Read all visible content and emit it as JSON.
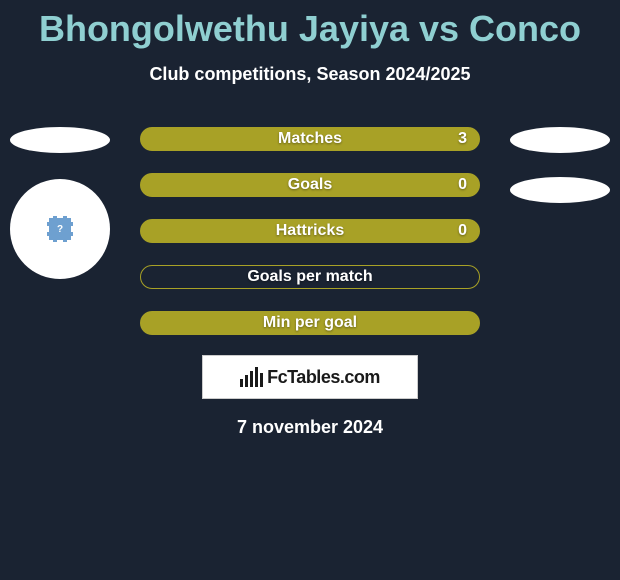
{
  "title": "Bhongolwethu Jayiya vs Conco",
  "subtitle": "Club competitions, Season 2024/2025",
  "stats": [
    {
      "label": "Matches",
      "value": "3",
      "bg": "#a8a126",
      "border": "#a8a126"
    },
    {
      "label": "Goals",
      "value": "0",
      "bg": "#a8a126",
      "border": "#a8a126"
    },
    {
      "label": "Hattricks",
      "value": "0",
      "bg": "#a8a126",
      "border": "#a8a126"
    },
    {
      "label": "Goals per match",
      "value": "",
      "bg": "transparent",
      "border": "#a8a126"
    },
    {
      "label": "Min per goal",
      "value": "",
      "bg": "#a8a126",
      "border": "#a8a126"
    }
  ],
  "logo_text": "FcTables.com",
  "date": "7 november 2024",
  "badge_mark": "?",
  "colors": {
    "background": "#1a2332",
    "title": "#8fcfd1",
    "text_white": "#ffffff",
    "stat_bar": "#a8a126",
    "logo_bg": "#ffffff",
    "logo_text": "#1a1a1a"
  },
  "logo_bars": [
    8,
    12,
    16,
    20,
    14
  ]
}
